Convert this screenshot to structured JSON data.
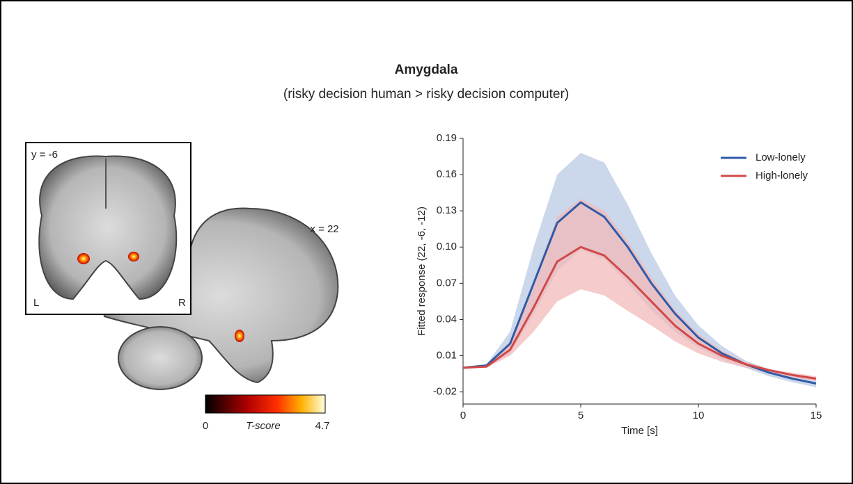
{
  "title": "Amygdala",
  "subtitle": "(risky decision human > risky decision computer)",
  "brain": {
    "coronal_label": "y = -6",
    "left": "L",
    "right": "R",
    "sagittal_label": "x = 22",
    "colorbar": {
      "min": "0",
      "label": "T-score",
      "max": "4.7"
    }
  },
  "chart_data": {
    "type": "line",
    "xlabel": "Time [s]",
    "ylabel": "Fitted response (22, -6, -12)",
    "x": [
      0,
      1,
      2,
      3,
      4,
      5,
      6,
      7,
      8,
      9,
      10,
      11,
      12,
      13,
      14,
      15
    ],
    "xlim": [
      0,
      15
    ],
    "xticks": [
      0,
      5,
      10,
      15
    ],
    "ylim": [
      -0.03,
      0.19
    ],
    "yticks": [
      -0.02,
      0.01,
      0.04,
      0.07,
      {
        "value": 0.1,
        "label": "0.10"
      },
      0.13,
      0.16,
      0.19
    ],
    "legend": "upper right",
    "series": [
      {
        "name": "Low-lonely",
        "color": "#2f5aa8",
        "band_color": "#b9c9e3",
        "values": [
          0,
          0.002,
          0.02,
          0.07,
          0.12,
          0.137,
          0.125,
          0.1,
          0.07,
          0.045,
          0.025,
          0.012,
          0.003,
          -0.004,
          -0.009,
          -0.013
        ],
        "upper": [
          0,
          0.003,
          0.03,
          0.1,
          0.16,
          0.178,
          0.17,
          0.135,
          0.095,
          0.06,
          0.035,
          0.018,
          0.006,
          -0.001,
          -0.006,
          -0.01
        ],
        "lower": [
          0,
          0.001,
          0.012,
          0.045,
          0.08,
          0.098,
          0.09,
          0.07,
          0.048,
          0.03,
          0.017,
          0.007,
          0,
          -0.007,
          -0.012,
          -0.016
        ]
      },
      {
        "name": "High-lonely",
        "color": "#d04848",
        "band_color": "#f2b9b9",
        "values": [
          0,
          0.001,
          0.015,
          0.05,
          0.088,
          0.1,
          0.093,
          0.075,
          0.055,
          0.035,
          0.02,
          0.01,
          0.003,
          -0.002,
          -0.006,
          -0.009
        ],
        "upper": [
          0,
          0.002,
          0.022,
          0.072,
          0.125,
          0.14,
          0.13,
          0.105,
          0.075,
          0.048,
          0.028,
          0.014,
          0.005,
          -0.001,
          -0.004,
          -0.007
        ],
        "lower": [
          0,
          0,
          0.01,
          0.03,
          0.055,
          0.065,
          0.06,
          0.047,
          0.035,
          0.022,
          0.012,
          0.005,
          0,
          -0.004,
          -0.008,
          -0.011
        ]
      }
    ]
  }
}
